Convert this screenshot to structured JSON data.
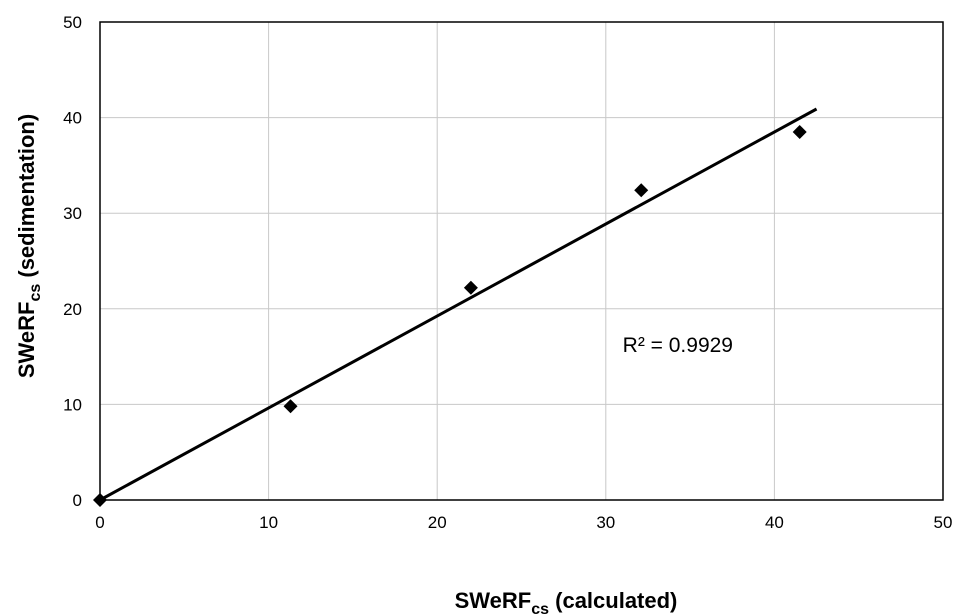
{
  "chart_data": {
    "type": "scatter",
    "xlabel": {
      "main": "SWeRF",
      "sub": "cs",
      "suffix": " (calculated)"
    },
    "ylabel": {
      "main": "SWeRF",
      "sub": "cs",
      "suffix": "  (sedimentation)"
    },
    "xlim": [
      0,
      50
    ],
    "ylim": [
      0,
      50
    ],
    "xticks": [
      "0",
      "10",
      "20",
      "30",
      "40",
      "50"
    ],
    "yticks": [
      "0",
      "10",
      "20",
      "30",
      "40",
      "50"
    ],
    "grid": true,
    "marker": "diamond",
    "points": [
      {
        "x": 0,
        "y": 0
      },
      {
        "x": 11.3,
        "y": 9.8
      },
      {
        "x": 22.0,
        "y": 22.2
      },
      {
        "x": 32.1,
        "y": 32.4
      },
      {
        "x": 41.5,
        "y": 38.5
      }
    ],
    "trendline": {
      "x1": 0,
      "y1": 0,
      "x2": 42.5,
      "y2": 40.9
    },
    "annotation": "R² = 0.9929",
    "annotation_at": {
      "x": 31,
      "y": 15.5
    }
  }
}
